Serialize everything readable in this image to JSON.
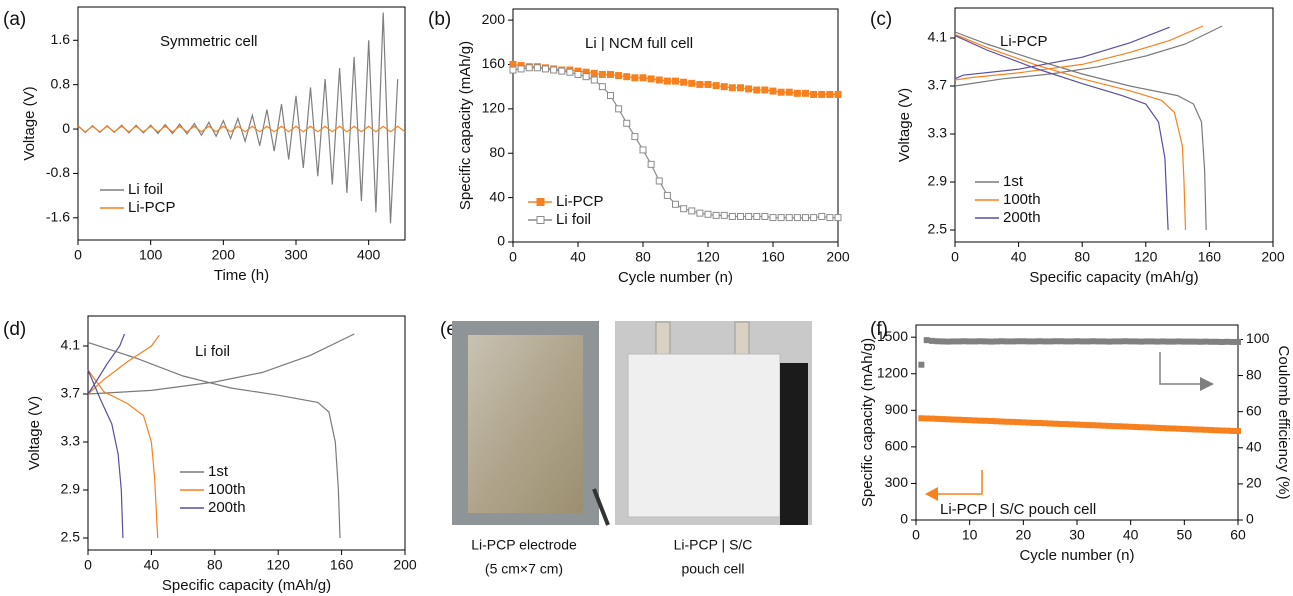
{
  "chart_data": [
    {
      "type": "line",
      "panel_label": "(a)",
      "annotation": "Symmetric cell",
      "annotation_color": "#000000",
      "xlabel": "Time (h)",
      "ylabel": "Voltage (V)",
      "xlim": [
        0,
        450
      ],
      "xticks": [
        0,
        100,
        200,
        300,
        400
      ],
      "ylim": [
        -2.0,
        2.2
      ],
      "yticks": [
        1.6,
        0.8,
        0,
        -0.8,
        -1.6
      ],
      "legend": "lower left",
      "legend_text_colored": true,
      "series": [
        {
          "name": "Li foil",
          "color": "#7f7f7f",
          "x": [
            0,
            10,
            20,
            30,
            40,
            50,
            60,
            70,
            80,
            90,
            100,
            110,
            120,
            130,
            140,
            150,
            160,
            170,
            180,
            190,
            200,
            210,
            220,
            230,
            240,
            250,
            260,
            270,
            280,
            290,
            300,
            310,
            320,
            330,
            340,
            350,
            360,
            370,
            380,
            390,
            400,
            410,
            420,
            430,
            440
          ],
          "values": [
            0.06,
            -0.06,
            0.06,
            -0.06,
            0.06,
            -0.06,
            0.07,
            -0.07,
            0.07,
            -0.07,
            0.07,
            -0.08,
            0.08,
            -0.08,
            0.09,
            -0.09,
            0.1,
            -0.11,
            0.12,
            -0.13,
            0.15,
            -0.17,
            0.19,
            -0.22,
            0.25,
            -0.3,
            0.35,
            -0.4,
            0.45,
            -0.55,
            0.6,
            -0.7,
            0.75,
            -0.85,
            0.9,
            -1.0,
            1.1,
            -1.15,
            1.3,
            -1.3,
            1.6,
            -1.5,
            2.1,
            -1.7,
            0.9
          ]
        },
        {
          "name": "Li-PCP",
          "color": "#f7811f",
          "x": [
            0,
            10,
            20,
            30,
            40,
            50,
            60,
            70,
            80,
            90,
            100,
            110,
            120,
            130,
            140,
            150,
            160,
            170,
            180,
            190,
            200,
            210,
            220,
            230,
            240,
            250,
            260,
            270,
            280,
            290,
            300,
            310,
            320,
            330,
            340,
            350,
            360,
            370,
            380,
            390,
            400,
            410,
            420,
            430,
            440,
            450
          ],
          "values": [
            0.05,
            -0.05,
            0.05,
            -0.05,
            0.05,
            -0.05,
            0.05,
            -0.05,
            0.05,
            -0.05,
            0.05,
            -0.05,
            0.05,
            -0.05,
            0.05,
            -0.05,
            0.05,
            -0.05,
            0.05,
            -0.05,
            0.05,
            -0.05,
            0.05,
            -0.05,
            0.05,
            -0.05,
            0.05,
            -0.05,
            0.05,
            -0.05,
            0.05,
            -0.05,
            0.05,
            -0.05,
            0.05,
            -0.05,
            0.05,
            -0.05,
            0.05,
            -0.05,
            0.05,
            -0.05,
            0.05,
            -0.05,
            0.05,
            -0.05
          ]
        }
      ]
    },
    {
      "type": "line",
      "panel_label": "(b)",
      "annotation": "Li | NCM full cell",
      "annotation_color": "#000000",
      "xlabel": "Cycle number (n)",
      "ylabel": "Specific capacity (mAh/g)",
      "xlim": [
        0,
        200
      ],
      "xticks": [
        0,
        40,
        80,
        120,
        160,
        200
      ],
      "ylim": [
        0,
        210
      ],
      "yticks": [
        0,
        40,
        80,
        120,
        160,
        200
      ],
      "legend": "lower left",
      "legend_text_colored": true,
      "series": [
        {
          "name": "Li-PCP",
          "color": "#f7811f",
          "marker": "filled-square",
          "x": [
            0,
            5,
            10,
            15,
            20,
            25,
            30,
            35,
            40,
            45,
            50,
            55,
            60,
            65,
            70,
            75,
            80,
            85,
            90,
            95,
            100,
            105,
            110,
            115,
            120,
            125,
            130,
            135,
            140,
            145,
            150,
            155,
            160,
            165,
            170,
            175,
            180,
            185,
            190,
            195,
            200
          ],
          "values": [
            160,
            159,
            158,
            158,
            157,
            156,
            155,
            155,
            154,
            153,
            152,
            151,
            151,
            150,
            149,
            148,
            148,
            147,
            146,
            145,
            145,
            144,
            143,
            142,
            142,
            141,
            140,
            139,
            139,
            138,
            137,
            137,
            136,
            135,
            135,
            134,
            134,
            133,
            133,
            133,
            133
          ]
        },
        {
          "name": "Li foil",
          "color": "#8c8c8c",
          "marker": "open-square",
          "x": [
            0,
            5,
            10,
            15,
            20,
            25,
            30,
            35,
            40,
            45,
            50,
            55,
            60,
            65,
            70,
            75,
            80,
            85,
            90,
            95,
            100,
            105,
            110,
            115,
            120,
            125,
            130,
            135,
            140,
            145,
            150,
            155,
            160,
            165,
            170,
            175,
            180,
            185,
            190,
            195,
            200
          ],
          "values": [
            155,
            156,
            157,
            157,
            156,
            155,
            154,
            153,
            151,
            149,
            146,
            140,
            132,
            120,
            107,
            95,
            83,
            70,
            55,
            42,
            34,
            30,
            28,
            26,
            25,
            24,
            24,
            23,
            23,
            23,
            23,
            23,
            22,
            22,
            22,
            22,
            22,
            22,
            23,
            22,
            22
          ]
        }
      ]
    },
    {
      "type": "line",
      "panel_label": "(c)",
      "annotation": "Li-PCP",
      "annotation_color": "#f7811f",
      "xlabel": "Specific capacity (mAh/g)",
      "ylabel": "Voltage (V)",
      "xlim": [
        0,
        200
      ],
      "xticks": [
        0,
        40,
        80,
        120,
        160,
        200
      ],
      "ylim": [
        2.4,
        4.35
      ],
      "yticks": [
        2.5,
        2.9,
        3.3,
        3.7,
        4.1
      ],
      "legend": "lower left",
      "series": [
        {
          "name": "1st",
          "color": "#7a7a7a",
          "x": [
            0,
            10,
            30,
            60,
            90,
            120,
            145,
            168,
            null,
            0,
            20,
            50,
            80,
            110,
            140,
            150,
            155,
            157,
            158
          ],
          "values": [
            3.7,
            3.72,
            3.76,
            3.8,
            3.86,
            3.95,
            4.05,
            4.2,
            null,
            4.15,
            4.05,
            3.92,
            3.8,
            3.7,
            3.62,
            3.55,
            3.4,
            3.0,
            2.5
          ]
        },
        {
          "name": "100th",
          "color": "#f7811f",
          "x": [
            0,
            10,
            40,
            80,
            110,
            135,
            156,
            null,
            0,
            20,
            50,
            80,
            110,
            130,
            138,
            143,
            144,
            145
          ],
          "values": [
            3.75,
            3.77,
            3.81,
            3.88,
            3.98,
            4.08,
            4.2,
            null,
            4.13,
            4.02,
            3.88,
            3.76,
            3.66,
            3.58,
            3.48,
            3.2,
            2.9,
            2.5
          ]
        },
        {
          "name": "200th",
          "color": "#5b4ea3",
          "x": [
            0,
            5,
            40,
            80,
            110,
            135,
            null,
            0,
            20,
            50,
            80,
            105,
            120,
            128,
            132,
            133,
            134
          ],
          "values": [
            3.76,
            3.79,
            3.84,
            3.94,
            4.06,
            4.19,
            null,
            4.12,
            4.0,
            3.85,
            3.72,
            3.62,
            3.55,
            3.4,
            3.1,
            2.8,
            2.5
          ]
        }
      ]
    },
    {
      "type": "line",
      "panel_label": "(d)",
      "annotation": "Li foil",
      "annotation_color": "#8c8c8c",
      "xlabel": "Specific capacity (mAh/g)",
      "ylabel": "Voltage (V)",
      "xlim": [
        0,
        200
      ],
      "xticks": [
        0,
        40,
        80,
        120,
        160,
        200
      ],
      "ylim": [
        2.4,
        4.35
      ],
      "yticks": [
        2.5,
        2.9,
        3.3,
        3.7,
        4.1
      ],
      "legend": "lower center",
      "series": [
        {
          "name": "1st",
          "color": "#7a7a7a",
          "x": [
            0,
            40,
            80,
            110,
            140,
            168,
            null,
            0,
            30,
            60,
            90,
            120,
            145,
            152,
            156,
            158,
            159
          ],
          "values": [
            3.7,
            3.73,
            3.8,
            3.88,
            4.02,
            4.2,
            null,
            4.13,
            4.0,
            3.85,
            3.75,
            3.69,
            3.63,
            3.55,
            3.3,
            2.9,
            2.5
          ]
        },
        {
          "name": "100th",
          "color": "#f7811f",
          "x": [
            0,
            10,
            25,
            40,
            45,
            null,
            0,
            10,
            25,
            35,
            40,
            42,
            44
          ],
          "values": [
            3.7,
            3.82,
            3.97,
            4.1,
            4.19,
            null,
            3.9,
            3.72,
            3.62,
            3.52,
            3.3,
            3.0,
            2.5
          ]
        },
        {
          "name": "200th",
          "color": "#5b4ea3",
          "x": [
            0,
            5,
            12,
            20,
            23,
            null,
            0,
            8,
            15,
            19,
            21,
            22
          ],
          "values": [
            3.7,
            3.8,
            3.95,
            4.1,
            4.2,
            null,
            3.9,
            3.65,
            3.45,
            3.2,
            2.9,
            2.5
          ]
        }
      ]
    },
    {
      "type": "scatter",
      "panel_label": "(f)",
      "annotation": "Li-PCP | S/C pouch cell",
      "annotation_color": "#000000",
      "xlabel": "Cycle number (n)",
      "ylabel": "Specific capacity (mAh/g)",
      "y2label": "Coulomb efficiency (%)",
      "xlim": [
        0,
        60
      ],
      "xticks": [
        0,
        10,
        20,
        30,
        40,
        50,
        60
      ],
      "ylim": [
        0,
        1600
      ],
      "yticks": [
        0,
        300,
        600,
        900,
        1200,
        1500
      ],
      "y2lim": [
        0,
        108
      ],
      "y2ticks": [
        0,
        20,
        40,
        60,
        80,
        100
      ],
      "series": [
        {
          "name": "Specific capacity",
          "color": "#f7811f",
          "marker": "filled-square",
          "x": [
            1,
            2,
            3,
            4,
            5,
            6,
            7,
            8,
            9,
            10,
            11,
            12,
            13,
            14,
            15,
            16,
            17,
            18,
            19,
            20,
            21,
            22,
            23,
            24,
            25,
            26,
            27,
            28,
            29,
            30,
            31,
            32,
            33,
            34,
            35,
            36,
            37,
            38,
            39,
            40,
            41,
            42,
            43,
            44,
            45,
            46,
            47,
            48,
            49,
            50,
            51,
            52,
            53,
            54,
            55,
            56,
            57,
            58,
            59,
            60
          ],
          "values": [
            835,
            833,
            832,
            830,
            828,
            826,
            824,
            823,
            821,
            819,
            817,
            815,
            814,
            812,
            810,
            808,
            806,
            805,
            803,
            801,
            799,
            797,
            796,
            794,
            792,
            790,
            788,
            787,
            785,
            783,
            781,
            779,
            778,
            776,
            774,
            772,
            770,
            769,
            767,
            765,
            763,
            761,
            760,
            758,
            756,
            754,
            752,
            751,
            749,
            747,
            745,
            743,
            742,
            740,
            738,
            736,
            734,
            733,
            731,
            730
          ]
        },
        {
          "name": "Coulomb efficiency",
          "color": "#808080",
          "marker": "filled-square",
          "axis": "y2",
          "x": [
            1,
            2,
            3,
            4,
            5,
            6,
            7,
            8,
            9,
            10,
            11,
            12,
            13,
            14,
            15,
            16,
            17,
            18,
            19,
            20,
            21,
            22,
            23,
            24,
            25,
            26,
            27,
            28,
            29,
            30,
            31,
            32,
            33,
            34,
            35,
            36,
            37,
            38,
            39,
            40,
            41,
            42,
            43,
            44,
            45,
            46,
            47,
            48,
            49,
            50,
            51,
            52,
            53,
            54,
            55,
            56,
            57,
            58,
            59,
            60
          ],
          "values": [
            86,
            99.6,
            99.2,
            99.0,
            98.9,
            98.8,
            98.9,
            98.9,
            99.0,
            98.9,
            98.9,
            99.0,
            98.9,
            98.8,
            98.9,
            99.0,
            98.9,
            98.9,
            99.0,
            99.0,
            98.9,
            98.9,
            99.0,
            98.9,
            98.9,
            99.0,
            99.0,
            98.9,
            98.9,
            99.0,
            98.9,
            98.9,
            99.0,
            98.9,
            98.9,
            98.8,
            98.9,
            98.9,
            99.0,
            98.9,
            98.9,
            98.8,
            98.9,
            98.9,
            98.8,
            98.9,
            98.8,
            98.8,
            98.9,
            98.8,
            98.8,
            98.8,
            98.7,
            98.8,
            98.7,
            98.7,
            98.6,
            98.7,
            98.6,
            98.6
          ]
        }
      ]
    }
  ],
  "photo_panel": {
    "panel_label": "(e)",
    "captions": [
      "Li-PCP electrode",
      "(5 cm×7 cm)",
      "Li-PCP | S/C",
      "pouch cell"
    ]
  }
}
